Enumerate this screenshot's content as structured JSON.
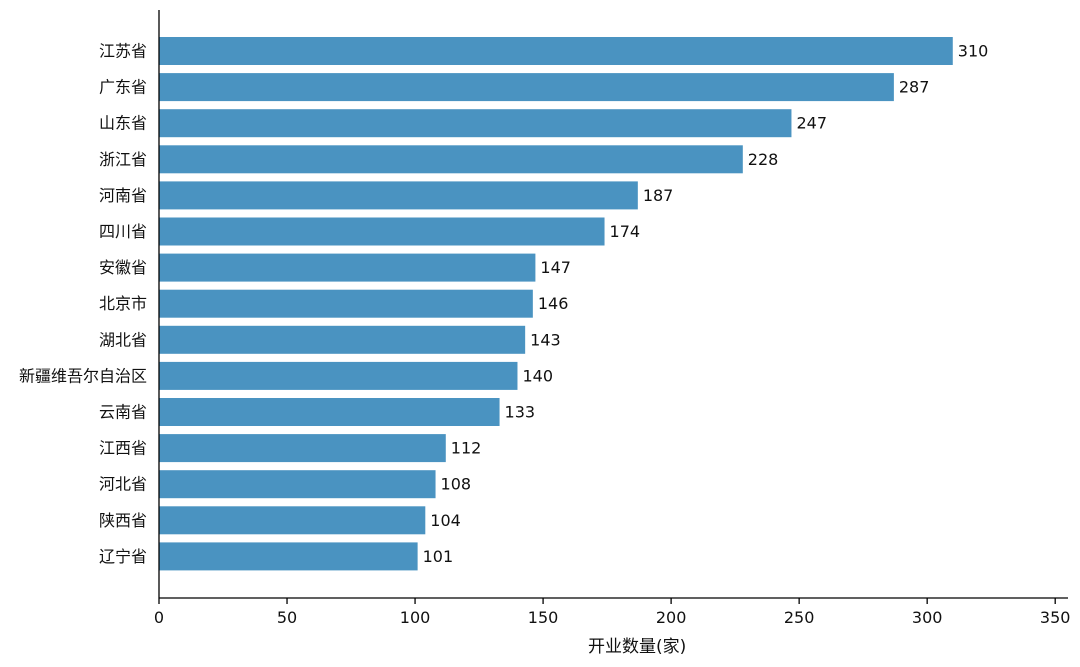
{
  "chart_data": {
    "type": "bar",
    "orientation": "horizontal",
    "categories": [
      "江苏省",
      "广东省",
      "山东省",
      "浙江省",
      "河南省",
      "四川省",
      "安徽省",
      "北京市",
      "湖北省",
      "新疆维吾尔自治区",
      "云南省",
      "江西省",
      "河北省",
      "陕西省",
      "辽宁省"
    ],
    "values": [
      310,
      287,
      247,
      228,
      187,
      174,
      147,
      146,
      143,
      140,
      133,
      112,
      108,
      104,
      101
    ],
    "value_labels": [
      "310",
      "287",
      "247",
      "228",
      "187",
      "174",
      "147",
      "146",
      "143",
      "140",
      "133",
      "112",
      "108",
      "104",
      "101"
    ],
    "title": "",
    "xlabel": "开业数量(家)",
    "ylabel": "",
    "xlim": [
      0,
      355
    ],
    "x_ticks": [
      0,
      50,
      100,
      150,
      200,
      250,
      300,
      350
    ],
    "x_tick_labels": [
      "0",
      "50",
      "100",
      "150",
      "200",
      "250",
      "300",
      "350"
    ],
    "bar_color": "#4a93c1",
    "grid": false,
    "legend": "none"
  }
}
